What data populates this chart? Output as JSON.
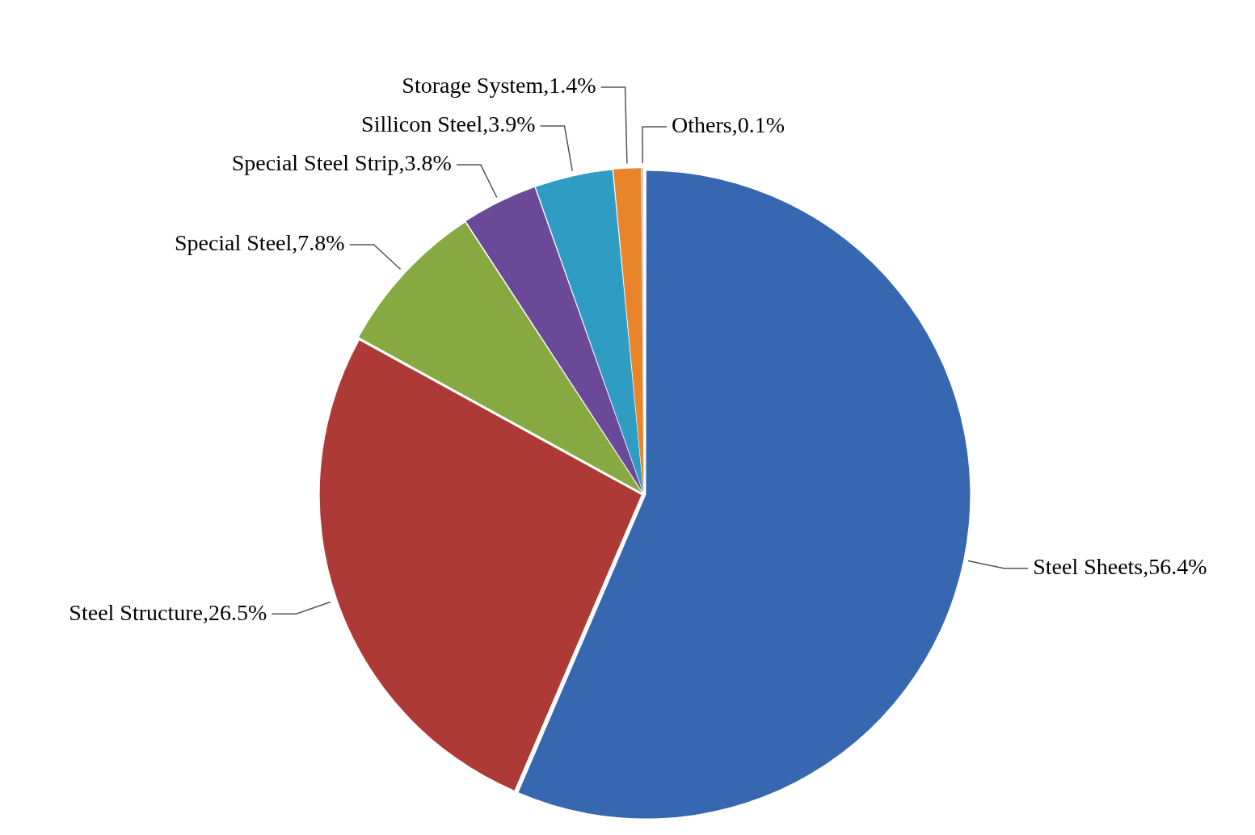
{
  "chart_data": {
    "type": "pie",
    "categories": [
      "Steel Sheets",
      "Steel Structure",
      "Special Steel",
      "Special Steel Strip",
      "Sillicon Steel",
      "Storage System",
      "Others"
    ],
    "values": [
      56.4,
      26.5,
      7.8,
      3.8,
      3.9,
      1.4,
      0.1
    ],
    "value_labels": [
      "56.4%",
      "26.5%",
      "7.8%",
      "3.8%",
      "3.9%",
      "1.4%",
      "0.1%"
    ],
    "colors": [
      "#3767b0",
      "#ae3a37",
      "#87a942",
      "#6a4a98",
      "#2f9dc3",
      "#e8842a",
      "#bfbfbf"
    ],
    "legend": false
  }
}
